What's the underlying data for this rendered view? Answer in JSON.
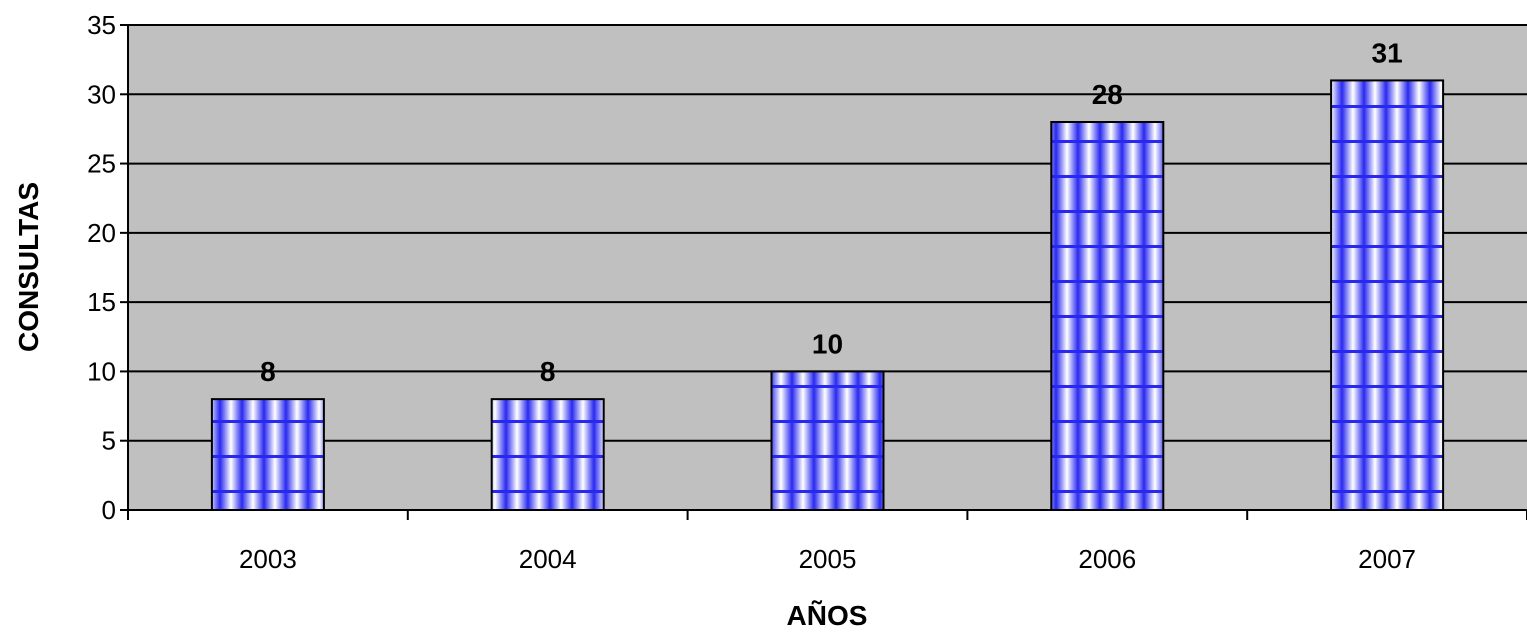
{
  "chart_data": {
    "type": "bar",
    "categories": [
      "2003",
      "2004",
      "2005",
      "2006",
      "2007"
    ],
    "series": [
      {
        "values": [
          8,
          8,
          10,
          28,
          31
        ]
      }
    ],
    "data_labels": [
      "8",
      "8",
      "10",
      "28",
      "31"
    ],
    "xlabel": "AÑOS",
    "ylabel": "CONSULTAS",
    "ylim": [
      0,
      35
    ],
    "yticks": [
      "0",
      "5",
      "10",
      "15",
      "20",
      "25",
      "30",
      "35"
    ],
    "grid": true,
    "legend": "none",
    "colors": {
      "plot_background": "#c0c0c0",
      "bar_fill": "#2828f0",
      "bar_highlight": "#ffffff",
      "gridline": "#000000"
    }
  }
}
